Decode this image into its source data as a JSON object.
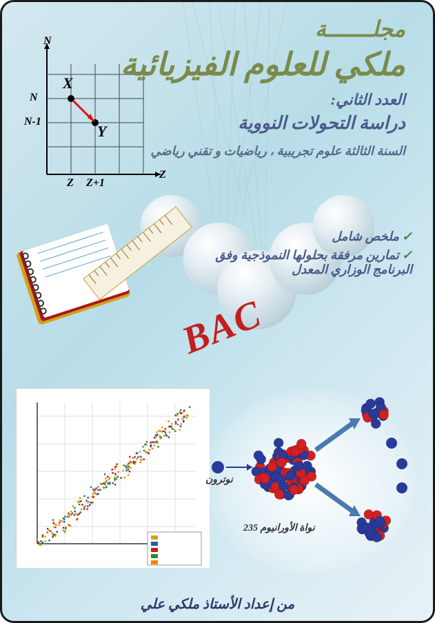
{
  "header": {
    "small_title": "مجلـــــــة",
    "main_title": "ملكي للعلوم الفيزيائية",
    "issue": "العدد الثاني:",
    "topic": "دراسة التحولات النووية",
    "level": "السنة الثالثة علوم تجريبية ، رياضيات و تقني رياضي"
  },
  "bullets": {
    "items": [
      "ملخص شامل",
      "تمارين مرفقة بحلولها النموذجية وفق البرنامج الوزاري المعدل"
    ]
  },
  "bac_label": "BAC",
  "grid_diagram": {
    "n_axis": "N",
    "z_axis": "Z",
    "n_tick": "N",
    "n1_tick": "N-1",
    "z_tick": "Z",
    "z1_tick": "Z+1",
    "x_label": "X",
    "y_label": "Y",
    "grid_color": "#555555",
    "arrow_color": "#e01010"
  },
  "scatter": {
    "bg": "#ffffff",
    "grid_color": "#e0e0e0",
    "axis_color": "#333333",
    "series_colors": [
      "#d4a017",
      "#1e5fa8",
      "#c41e1e",
      "#2e8b2e",
      "#ff7f00"
    ],
    "xlim": [
      0,
      200
    ],
    "ylim": [
      0,
      300
    ],
    "approx_points": true
  },
  "fission_diagram": {
    "neutron_label": "نوترون",
    "nucleus_label": "نواة الأورانيوم 235",
    "neutron_color": "#2a3a9a",
    "proton_color": "#d42020",
    "arrow_color": "#4a7ab0"
  },
  "footer": {
    "text": "من إعداد الأستاذ  ملكي علي"
  },
  "style": {
    "border_color": "#1a1a1a",
    "title_color": "#7a8a4a",
    "subtitle_color": "#4a5a8a",
    "bac_color": "#c41e1e"
  }
}
